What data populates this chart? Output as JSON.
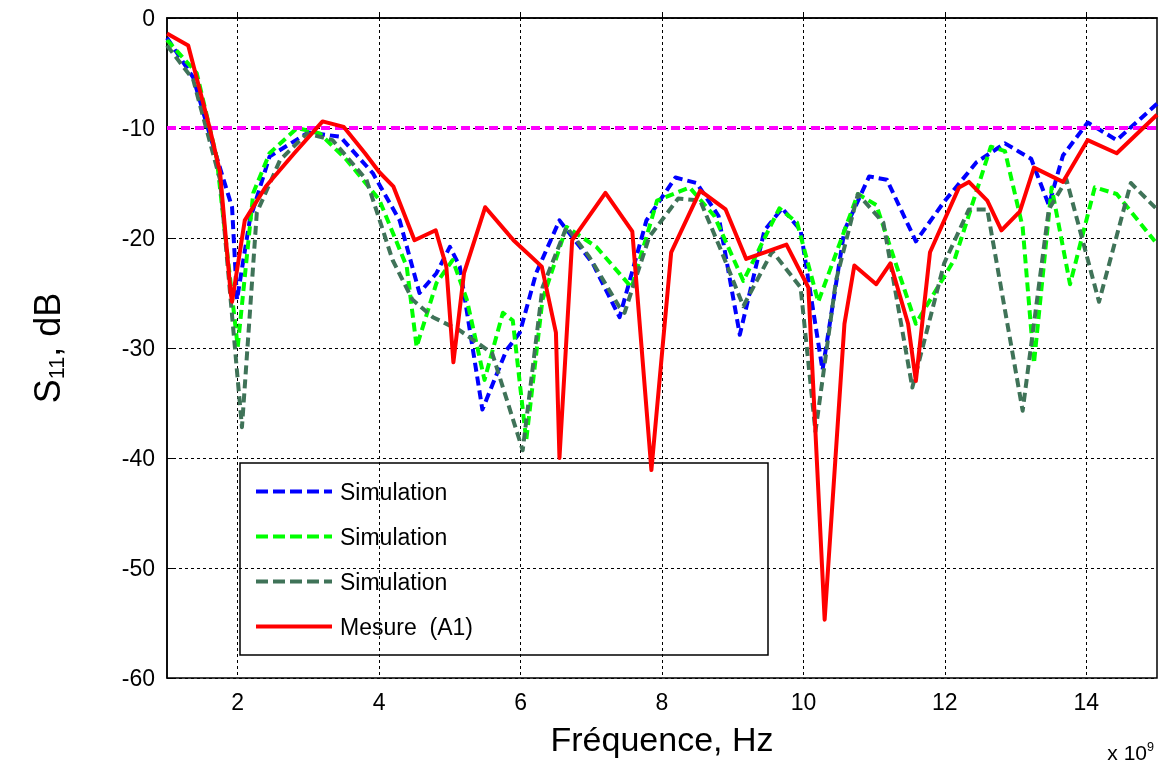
{
  "chart_data": {
    "type": "line",
    "xlabel": "Fréquence, Hz",
    "ylabel": "S$_{11}$, dB",
    "annotations": [
      "x 10$^{9}$"
    ],
    "xlim": [
      1,
      15
    ],
    "xticks": [
      2,
      4,
      6,
      8,
      10,
      12,
      14
    ],
    "ylim": [
      -60,
      0
    ],
    "yticks": [
      -60,
      -50,
      -40,
      -30,
      -20,
      -10,
      0
    ],
    "grid": true,
    "legend": "bottom left",
    "marker": "none",
    "ref_lines": [
      {
        "axis": "y",
        "value": -10,
        "color": "#ff00ff",
        "line_style": "dashed"
      }
    ],
    "series": [
      {
        "name": "Simulation",
        "color": "#0000ff",
        "line_style": "dashed",
        "x": [
          1,
          1.37,
          1.6,
          1.92,
          1.99,
          2.17,
          2.45,
          3.0,
          3.45,
          3.91,
          4.29,
          4.57,
          4.81,
          5.0,
          5.14,
          5.46,
          5.8,
          5.99,
          6.22,
          6.55,
          7.02,
          7.4,
          7.78,
          8.19,
          8.49,
          8.8,
          9.1,
          9.45,
          9.7,
          9.96,
          10.27,
          10.58,
          10.93,
          11.18,
          11.59,
          11.99,
          12.45,
          12.85,
          13.22,
          13.47,
          13.67,
          14.02,
          14.43,
          15
        ],
        "values": [
          -1.8,
          -5.4,
          -10.5,
          -17.2,
          -25.6,
          -18.4,
          -12.6,
          -10.4,
          -10.8,
          -14.1,
          -18.4,
          -25,
          -23.2,
          -20.8,
          -22.6,
          -35.6,
          -30.2,
          -28.6,
          -23.2,
          -18.4,
          -22.3,
          -27.2,
          -18.4,
          -14.5,
          -15,
          -18,
          -28.8,
          -19.3,
          -17.3,
          -19.3,
          -32,
          -19.3,
          -14.4,
          -14.7,
          -20.3,
          -16.7,
          -13.1,
          -11.4,
          -12.8,
          -17,
          -12.5,
          -9.5,
          -11.1,
          -7.8
        ]
      },
      {
        "name": "Simulation",
        "color": "#00ff00",
        "line_style": "dashed",
        "x": [
          1,
          1.42,
          1.7,
          2.0,
          2.22,
          2.45,
          2.84,
          3.16,
          3.54,
          4.0,
          4.39,
          4.53,
          4.81,
          5.04,
          5.24,
          5.49,
          5.75,
          5.89,
          6.08,
          6.31,
          6.65,
          7.07,
          7.57,
          7.93,
          8.39,
          8.74,
          9.15,
          9.66,
          9.91,
          10.21,
          10.77,
          11.03,
          11.59,
          12.14,
          12.65,
          12.85,
          13.1,
          13.26,
          13.51,
          13.77,
          14.12,
          14.43,
          14.97
        ],
        "values": [
          -2,
          -5,
          -12.6,
          -29.9,
          -15.9,
          -12.3,
          -10,
          -10.5,
          -12.9,
          -16.5,
          -22.6,
          -29.9,
          -24.1,
          -22,
          -25.6,
          -32.9,
          -26.8,
          -27.5,
          -38.4,
          -25.6,
          -19,
          -20.8,
          -24.5,
          -16.6,
          -15.4,
          -18,
          -23.9,
          -17.3,
          -18.6,
          -25.8,
          -16,
          -17,
          -27.8,
          -21.9,
          -11.7,
          -12.1,
          -19,
          -31.4,
          -15.4,
          -24.2,
          -15.4,
          -16,
          -20.3
        ]
      },
      {
        "name": "Simulation",
        "color": "#3f7358",
        "line_style": "dashed",
        "x": [
          1,
          1.37,
          1.75,
          2.06,
          2.27,
          2.6,
          2.98,
          3.34,
          3.82,
          4.19,
          4.47,
          4.76,
          5.14,
          5.6,
          6.03,
          6.31,
          6.65,
          6.97,
          7.4,
          7.47,
          7.82,
          8.23,
          8.54,
          8.84,
          9.15,
          9.56,
          9.96,
          10.17,
          10.46,
          10.77,
          11.13,
          11.54,
          11.99,
          12.34,
          12.6,
          13.1,
          13.47,
          13.72,
          14.18,
          14.63,
          15
        ],
        "values": [
          -2.5,
          -5.6,
          -14.7,
          -37.2,
          -17.7,
          -12.9,
          -10.5,
          -11.1,
          -14.7,
          -22,
          -25.6,
          -27.2,
          -28.4,
          -30.5,
          -39.3,
          -24.5,
          -19,
          -21.7,
          -26.3,
          -26.8,
          -19.9,
          -16.4,
          -16.6,
          -21.2,
          -26.2,
          -21.2,
          -24.5,
          -37.6,
          -23.9,
          -16,
          -18.6,
          -33.6,
          -22.3,
          -17.4,
          -17.4,
          -35.7,
          -17.4,
          -14.7,
          -25.8,
          -15,
          -17.4
        ]
      },
      {
        "name": "Mesure  (A1)",
        "color": "#ff0000",
        "line_style": "solid",
        "x": [
          1,
          1.3,
          1.6,
          1.75,
          1.9,
          1.92,
          2.1,
          2.4,
          2.8,
          3.2,
          3.5,
          3.8,
          4.0,
          4.2,
          4.5,
          4.8,
          4.95,
          5.05,
          5.2,
          5.5,
          5.9,
          6.3,
          6.5,
          6.55,
          6.73,
          7.2,
          7.58,
          7.85,
          8.13,
          8.54,
          8.9,
          9.19,
          9.76,
          10.07,
          10.3,
          10.58,
          10.72,
          11.03,
          11.23,
          11.48,
          11.59,
          11.79,
          12.2,
          12.34,
          12.6,
          12.8,
          13.06,
          13.26,
          13.67,
          14.02,
          14.43,
          15
        ],
        "values": [
          -1.4,
          -2.5,
          -9.9,
          -14,
          -25,
          -25.8,
          -18.4,
          -15.3,
          -12.3,
          -9.4,
          -9.9,
          -12.3,
          -14,
          -15.3,
          -20.2,
          -19.3,
          -22.6,
          -31.3,
          -23.2,
          -17.2,
          -20.2,
          -22.6,
          -28.6,
          -40,
          -20.2,
          -15.9,
          -19.4,
          -41.1,
          -21.3,
          -15.7,
          -17.4,
          -21.9,
          -20.6,
          -24.5,
          -54.7,
          -27.8,
          -22.5,
          -24.2,
          -22.3,
          -27.8,
          -33,
          -21.3,
          -15.4,
          -14.9,
          -16.6,
          -19.3,
          -17.6,
          -13.6,
          -14.9,
          -11.1,
          -12.3,
          -8.8
        ]
      }
    ]
  }
}
